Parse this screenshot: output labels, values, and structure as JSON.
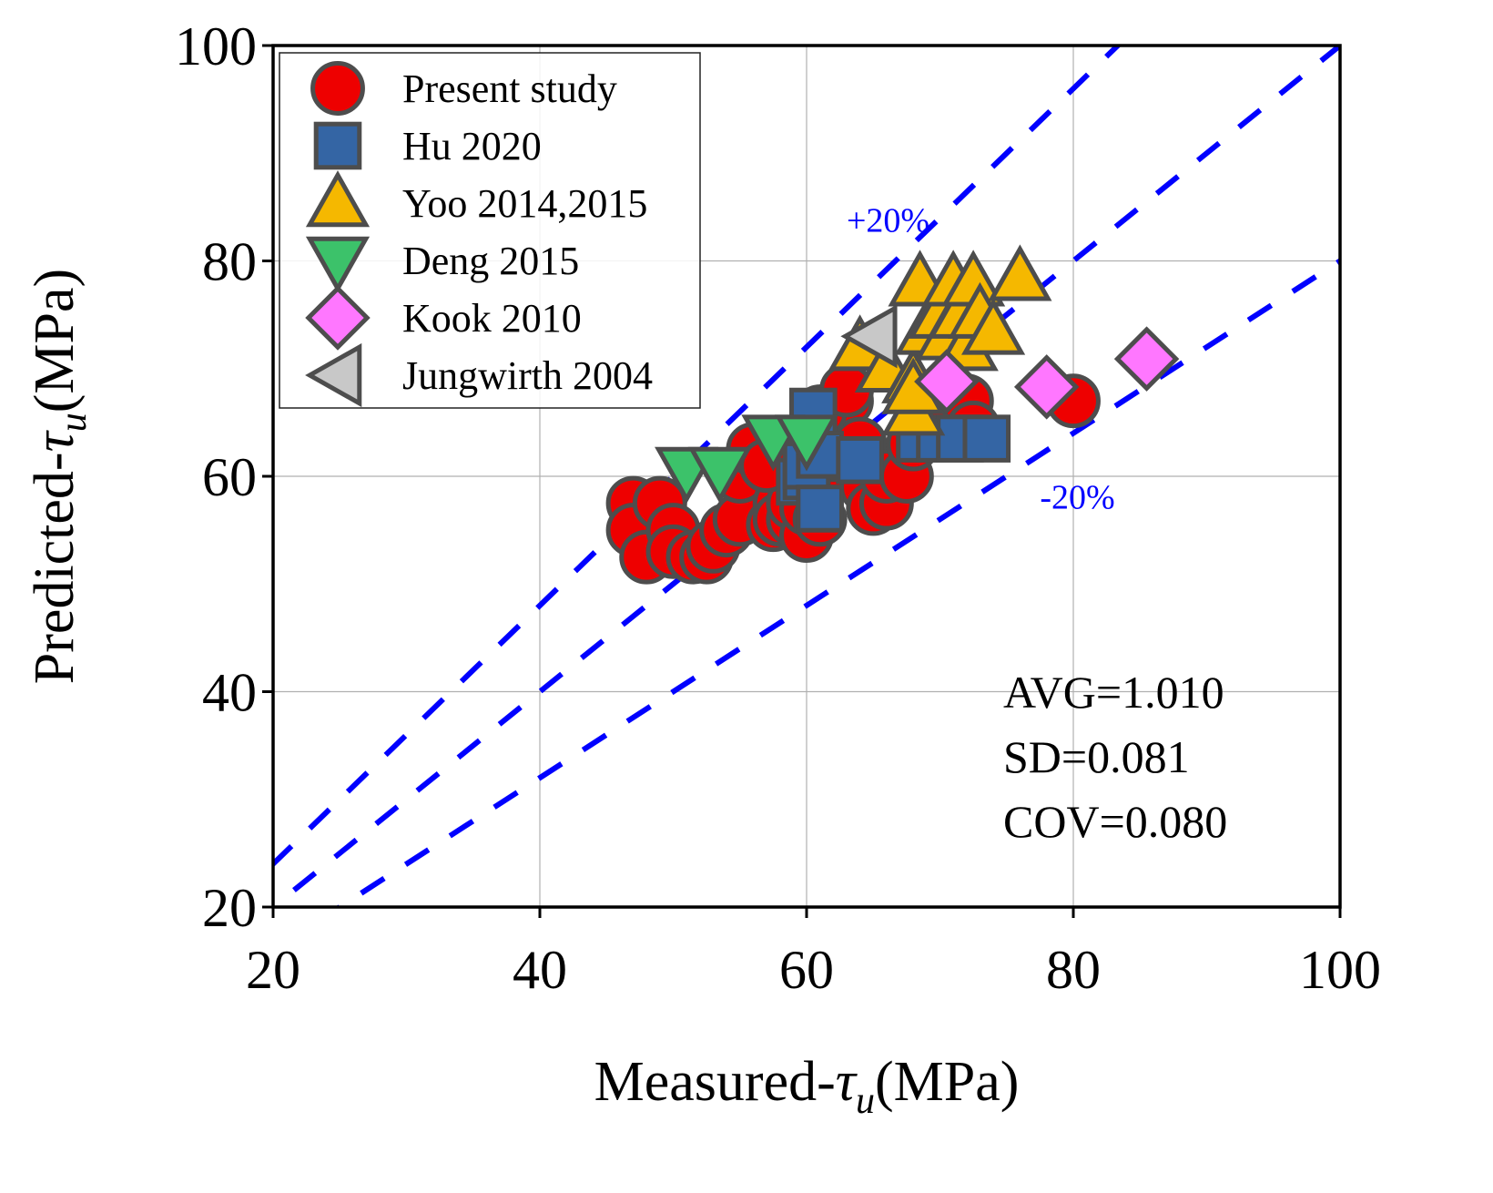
{
  "chart_data": {
    "type": "scatter",
    "title": "",
    "xlabel": {
      "prefix": "Measured-",
      "symbol": "τ",
      "subscript": "u",
      "suffix": "(MPa)"
    },
    "ylabel": {
      "prefix": "Predicted-",
      "symbol": "τ",
      "subscript": "u",
      "suffix": "(MPa)"
    },
    "xlim": [
      20,
      100
    ],
    "ylim": [
      20,
      100
    ],
    "xticks": [
      20,
      40,
      60,
      80,
      100
    ],
    "yticks": [
      20,
      40,
      60,
      80,
      100
    ],
    "grid": true,
    "legend_position": "top-left",
    "reference_lines": [
      {
        "name": "+20%",
        "slope": 1.2,
        "label": "+20%",
        "label_at": [
          63,
          82.7
        ],
        "color": "#0000ff"
      },
      {
        "name": "equality",
        "slope": 1.0,
        "label": "",
        "color": "#0000ff"
      },
      {
        "name": "-20%",
        "slope": 0.8,
        "label": "-20%",
        "label_at": [
          77.5,
          57
        ],
        "color": "#0000ff"
      }
    ],
    "stats": [
      "AVG=1.010",
      "SD=0.081",
      "COV=0.080"
    ],
    "series": [
      {
        "name": "Present study",
        "marker": "circle",
        "color": "#ee0000",
        "points": [
          [
            47,
            57.5
          ],
          [
            47,
            55
          ],
          [
            48,
            52.5
          ],
          [
            49,
            57.5
          ],
          [
            50,
            55
          ],
          [
            50,
            53
          ],
          [
            51.5,
            52.5
          ],
          [
            52.5,
            52.5
          ],
          [
            53,
            53.5
          ],
          [
            54,
            55
          ],
          [
            55,
            56
          ],
          [
            55,
            60
          ],
          [
            56,
            62.5
          ],
          [
            57,
            61
          ],
          [
            57.5,
            55.5
          ],
          [
            58,
            57.5
          ],
          [
            58,
            56
          ],
          [
            59,
            56
          ],
          [
            59,
            57.5
          ],
          [
            60,
            54.5
          ],
          [
            60,
            57
          ],
          [
            61,
            56
          ],
          [
            61,
            59
          ],
          [
            62,
            62
          ],
          [
            62.5,
            64
          ],
          [
            63,
            67
          ],
          [
            64,
            63
          ],
          [
            64,
            61
          ],
          [
            64.5,
            59
          ],
          [
            65,
            57
          ],
          [
            66,
            57.5
          ],
          [
            66,
            60
          ],
          [
            67.5,
            60
          ],
          [
            68,
            63
          ],
          [
            70,
            65
          ],
          [
            72,
            67
          ],
          [
            72.5,
            64.5
          ],
          [
            80,
            67
          ],
          [
            57,
            61
          ],
          [
            61,
            66
          ],
          [
            63,
            68
          ]
        ]
      },
      {
        "name": "Hu 2020",
        "marker": "square",
        "color": "#3465a4",
        "points": [
          [
            59.5,
            59.5
          ],
          [
            60,
            60
          ],
          [
            60,
            61
          ],
          [
            60.5,
            66
          ],
          [
            61,
            62
          ],
          [
            61,
            57
          ],
          [
            64,
            61.5
          ],
          [
            68.5,
            63.5
          ],
          [
            70,
            63.5
          ],
          [
            71.5,
            63.5
          ],
          [
            73.5,
            63.5
          ]
        ]
      },
      {
        "name": "Yoo 2014,2015",
        "marker": "triangle-up",
        "color": "#f5b800",
        "points": [
          [
            64,
            72
          ],
          [
            66,
            70
          ],
          [
            68,
            66
          ],
          [
            68,
            69
          ],
          [
            68.5,
            78
          ],
          [
            69,
            73.5
          ],
          [
            70,
            75
          ],
          [
            70.5,
            73
          ],
          [
            71,
            78
          ],
          [
            71.5,
            75
          ],
          [
            72,
            72
          ],
          [
            72.5,
            78
          ],
          [
            73,
            75
          ],
          [
            74,
            73.5
          ],
          [
            76,
            78.5
          ],
          [
            68,
            68
          ]
        ]
      },
      {
        "name": "Deng 2015",
        "marker": "triangle-down",
        "color": "#3cc26a",
        "points": [
          [
            51,
            60.5
          ],
          [
            53.5,
            60.5
          ],
          [
            57.5,
            63.5
          ],
          [
            60,
            63.5
          ]
        ]
      },
      {
        "name": "Kook 2010",
        "marker": "diamond",
        "color": "#ff77ff",
        "points": [
          [
            70.5,
            68.8
          ],
          [
            78,
            68.3
          ],
          [
            85.5,
            70.9
          ]
        ]
      },
      {
        "name": "Jungwirth 2004",
        "marker": "triangle-left",
        "color": "#c8c8c8",
        "points": [
          [
            65,
            73
          ]
        ]
      }
    ]
  }
}
